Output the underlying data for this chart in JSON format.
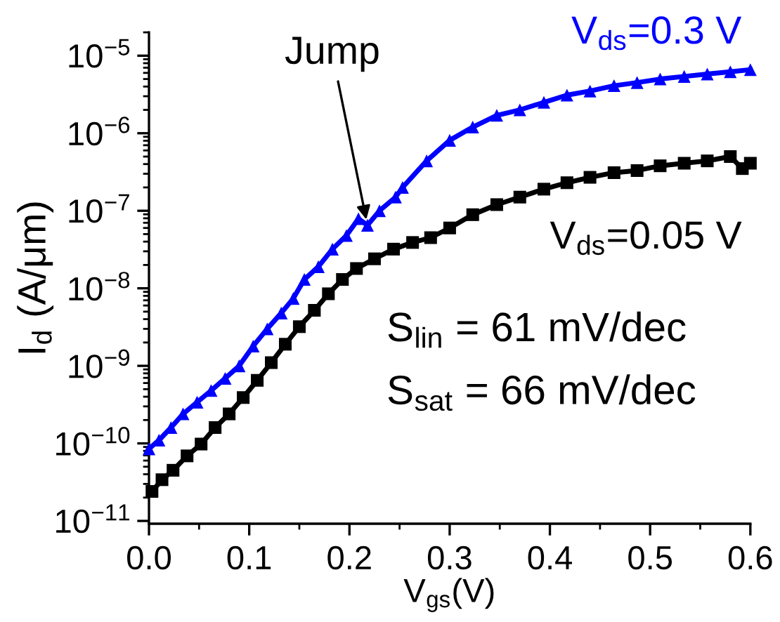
{
  "chart_data": {
    "type": "line",
    "xlabel": "V$_{gs}$(V)",
    "ylabel": "I$_{d}$ (A/μm)",
    "log": true,
    "line_style": "solid",
    "xlim": [
      0,
      0.6
    ],
    "xticks": [
      {
        "value": 0,
        "label": "0.0"
      },
      {
        "value": 0.05,
        "label": null
      },
      0.1,
      {
        "value": 0.15,
        "label": null
      },
      0.2,
      {
        "value": 0.25,
        "label": null
      },
      0.3,
      {
        "value": 0.35,
        "label": null
      },
      0.4,
      {
        "value": 0.45,
        "label": null
      },
      0.5,
      {
        "value": 0.55,
        "label": null
      },
      0.6
    ],
    "ylim": [
      9.2e-12,
      2e-05
    ],
    "yticks": [
      {
        "value": 1e-11,
        "label": "10$^{−11}$"
      },
      {
        "value": 1e-10,
        "label": "10$^{−10}$"
      },
      {
        "value": 1e-09,
        "label": "10$^{−9}$"
      },
      {
        "value": 1e-08,
        "label": "10$^{−8}$"
      },
      {
        "value": 1e-07,
        "label": "10$^{−7}$"
      },
      {
        "value": 1e-06,
        "label": "10$^{−6}$"
      },
      {
        "value": 1e-05,
        "label": "10$^{−5}$"
      }
    ],
    "series": [
      {
        "name": "V$_{ds}$=0.05 V",
        "color": "#000000",
        "marker": "square",
        "x": [
          0.003,
          0.013,
          0.024,
          0.038,
          0.052,
          0.066,
          0.08,
          0.094,
          0.108,
          0.122,
          0.136,
          0.15,
          0.165,
          0.179,
          0.193,
          0.207,
          0.225,
          0.244,
          0.263,
          0.281,
          0.3,
          0.323,
          0.347,
          0.37,
          0.394,
          0.417,
          0.44,
          0.464,
          0.487,
          0.51,
          0.534,
          0.557,
          0.58,
          0.592,
          0.6
        ],
        "values": [
          2.4e-11,
          3.4e-11,
          4.5e-11,
          6.9e-11,
          9.8e-11,
          1.6e-10,
          2.4e-10,
          3.9e-10,
          6.5e-10,
          1.1e-09,
          1.9e-09,
          3.2e-09,
          5.2e-09,
          8.5e-09,
          1.3e-08,
          1.8e-08,
          2.4e-08,
          3.2e-08,
          3.9e-08,
          4.5e-08,
          6e-08,
          8.9e-08,
          1.2e-07,
          1.5e-07,
          1.9e-07,
          2.3e-07,
          2.7e-07,
          3.1e-07,
          3.3e-07,
          3.8e-07,
          4.1e-07,
          4.4e-07,
          5e-07,
          3.5e-07,
          4.1e-07
        ]
      },
      {
        "name": "V$_{ds}$=0.3 V",
        "color": "#0000ff",
        "marker": "triangle",
        "x": [
          0,
          0.01,
          0.022,
          0.034,
          0.048,
          0.062,
          0.076,
          0.09,
          0.104,
          0.118,
          0.132,
          0.144,
          0.155,
          0.169,
          0.183,
          0.197,
          0.209,
          0.218,
          0.23,
          0.246,
          0.253,
          0.277,
          0.3,
          0.323,
          0.347,
          0.37,
          0.394,
          0.417,
          0.44,
          0.464,
          0.487,
          0.51,
          0.534,
          0.557,
          0.58,
          0.6
        ],
        "values": [
          8.5e-11,
          1.1e-10,
          1.6e-10,
          2.4e-10,
          3.4e-10,
          4.8e-10,
          6.9e-10,
          1e-09,
          1.8e-09,
          3e-09,
          4.8e-09,
          7.4e-09,
          1.3e-08,
          1.9e-08,
          3.2e-08,
          4.8e-08,
          7.9e-08,
          6.5e-08,
          1e-07,
          1.5e-07,
          2e-07,
          4.4e-07,
          8.1e-07,
          1.2e-06,
          1.7e-06,
          2e-06,
          2.5e-06,
          3.1e-06,
          3.5e-06,
          4.1e-06,
          4.5e-06,
          5e-06,
          5.4e-06,
          5.8e-06,
          6.2e-06,
          6.6e-06
        ]
      }
    ],
    "annotations": [
      "S$_{lin}$ = 61 mV/dec",
      "S$_{sat}$ = 66 mV/dec",
      {
        "text": "Jump",
        "x": 0.218,
        "y": 6.5e-08
      }
    ]
  }
}
